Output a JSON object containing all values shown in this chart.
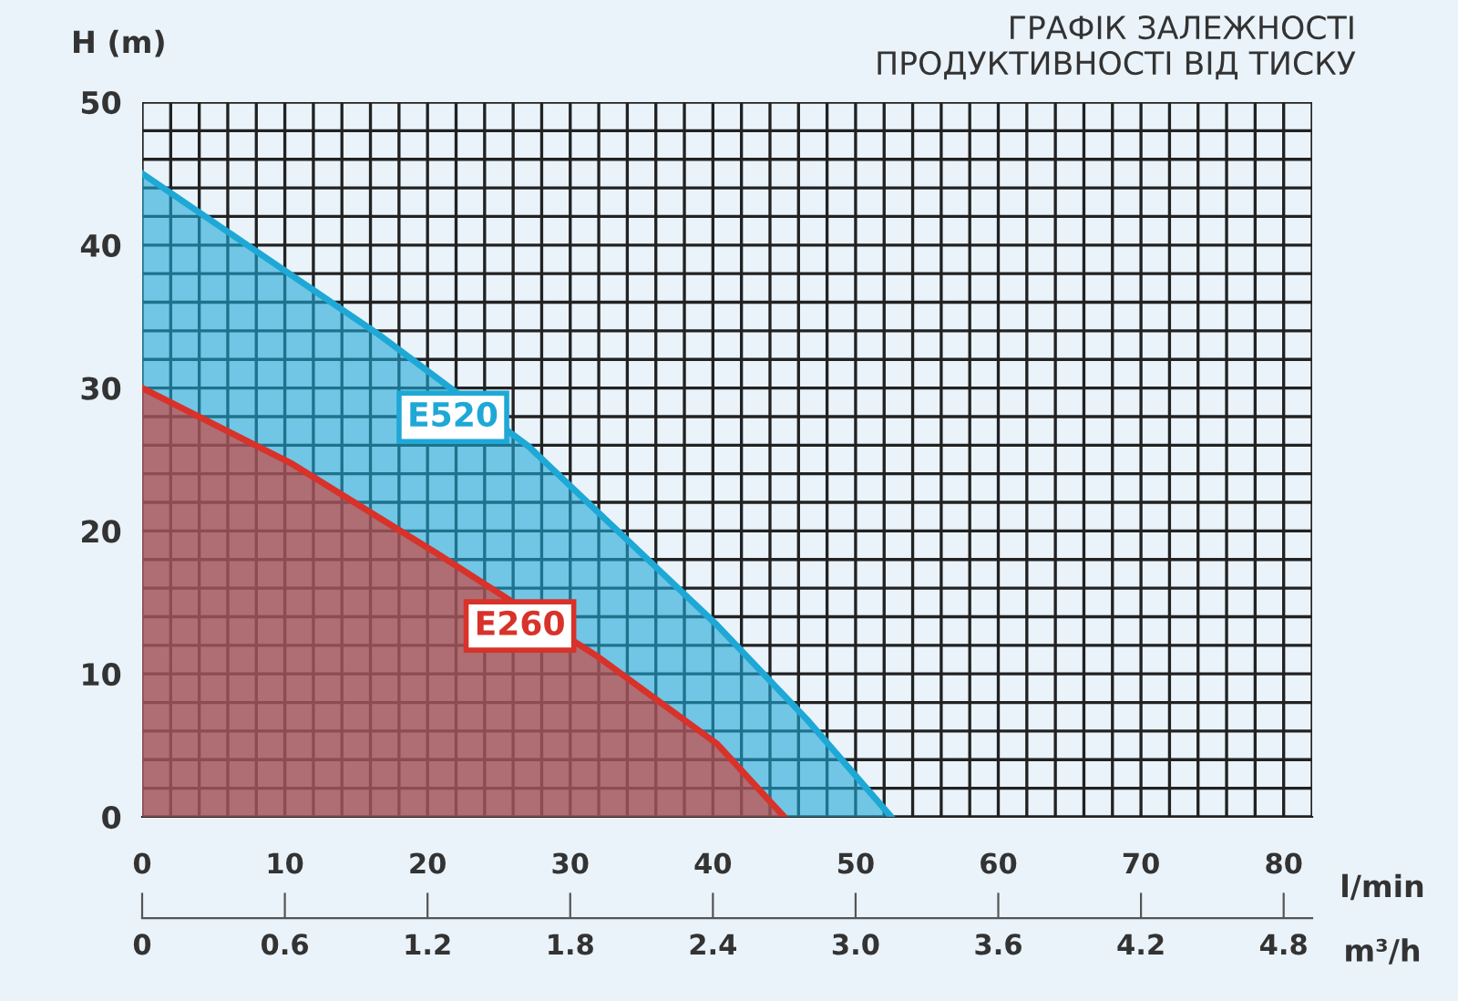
{
  "chart_data": {
    "type": "area",
    "title": "ГРАФІК ЗАЛЕЖНОСТІ\nПРОДУКТИВНОСТІ ВІД ТИСКУ",
    "ylabel": "H (m)",
    "xlabel": "l/min",
    "x2label": "m³/h",
    "xlim": [
      0,
      82
    ],
    "ylim": [
      0,
      50
    ],
    "xticks": [
      0,
      {
        "value": 2,
        "label": null
      },
      {
        "value": 4,
        "label": null
      },
      {
        "value": 6,
        "label": null
      },
      {
        "value": 8,
        "label": null
      },
      10,
      {
        "value": 12,
        "label": null
      },
      {
        "value": 14,
        "label": null
      },
      {
        "value": 16,
        "label": null
      },
      {
        "value": 18,
        "label": null
      },
      20,
      {
        "value": 22,
        "label": null
      },
      {
        "value": 24,
        "label": null
      },
      {
        "value": 26,
        "label": null
      },
      {
        "value": 28,
        "label": null
      },
      30,
      {
        "value": 32,
        "label": null
      },
      {
        "value": 34,
        "label": null
      },
      {
        "value": 36,
        "label": null
      },
      {
        "value": 38,
        "label": null
      },
      40,
      {
        "value": 42,
        "label": null
      },
      {
        "value": 44,
        "label": null
      },
      {
        "value": 46,
        "label": null
      },
      {
        "value": 48,
        "label": null
      },
      50,
      {
        "value": 52,
        "label": null
      },
      {
        "value": 54,
        "label": null
      },
      {
        "value": 56,
        "label": null
      },
      {
        "value": 58,
        "label": null
      },
      60,
      {
        "value": 62,
        "label": null
      },
      {
        "value": 64,
        "label": null
      },
      {
        "value": 66,
        "label": null
      },
      {
        "value": 68,
        "label": null
      },
      70,
      {
        "value": 72,
        "label": null
      },
      {
        "value": 74,
        "label": null
      },
      {
        "value": 76,
        "label": null
      },
      {
        "value": 78,
        "label": null
      },
      80,
      {
        "value": 82,
        "label": null
      }
    ],
    "yticks": [
      0,
      {
        "value": 2,
        "label": null
      },
      {
        "value": 4,
        "label": null
      },
      {
        "value": 6,
        "label": null
      },
      {
        "value": 8,
        "label": null
      },
      10,
      {
        "value": 12,
        "label": null
      },
      {
        "value": 14,
        "label": null
      },
      {
        "value": 16,
        "label": null
      },
      {
        "value": 18,
        "label": null
      },
      20,
      {
        "value": 22,
        "label": null
      },
      {
        "value": 24,
        "label": null
      },
      {
        "value": 26,
        "label": null
      },
      {
        "value": 28,
        "label": null
      },
      30,
      {
        "value": 32,
        "label": null
      },
      {
        "value": 34,
        "label": null
      },
      {
        "value": 36,
        "label": null
      },
      {
        "value": 38,
        "label": null
      },
      40,
      {
        "value": 42,
        "label": null
      },
      {
        "value": 44,
        "label": null
      },
      {
        "value": 46,
        "label": null
      },
      {
        "value": 48,
        "label": null
      },
      50
    ],
    "x2lim": [
      0,
      4.92
    ],
    "x2ticks": [
      0,
      0.6,
      1.2,
      1.8,
      2.4,
      {
        "value": 3,
        "label": "3.0"
      },
      3.6,
      4.2,
      4.8
    ],
    "grid": true,
    "series": [
      {
        "name": "E520",
        "color": "#1ea8d6",
        "x": [
          0,
          8.4,
          16.5,
          27.1,
          40.3,
          46.6,
          52.5
        ],
        "values": [
          45,
          39.3,
          33.8,
          25.9,
          13.4,
          6.8,
          0
        ]
      },
      {
        "name": "E260",
        "color": "#d8322a",
        "x": [
          0,
          10.5,
          20.7,
          31.8,
          40.3,
          45
        ],
        "values": [
          30,
          24.7,
          18.4,
          11.3,
          5.1,
          0
        ]
      }
    ]
  }
}
